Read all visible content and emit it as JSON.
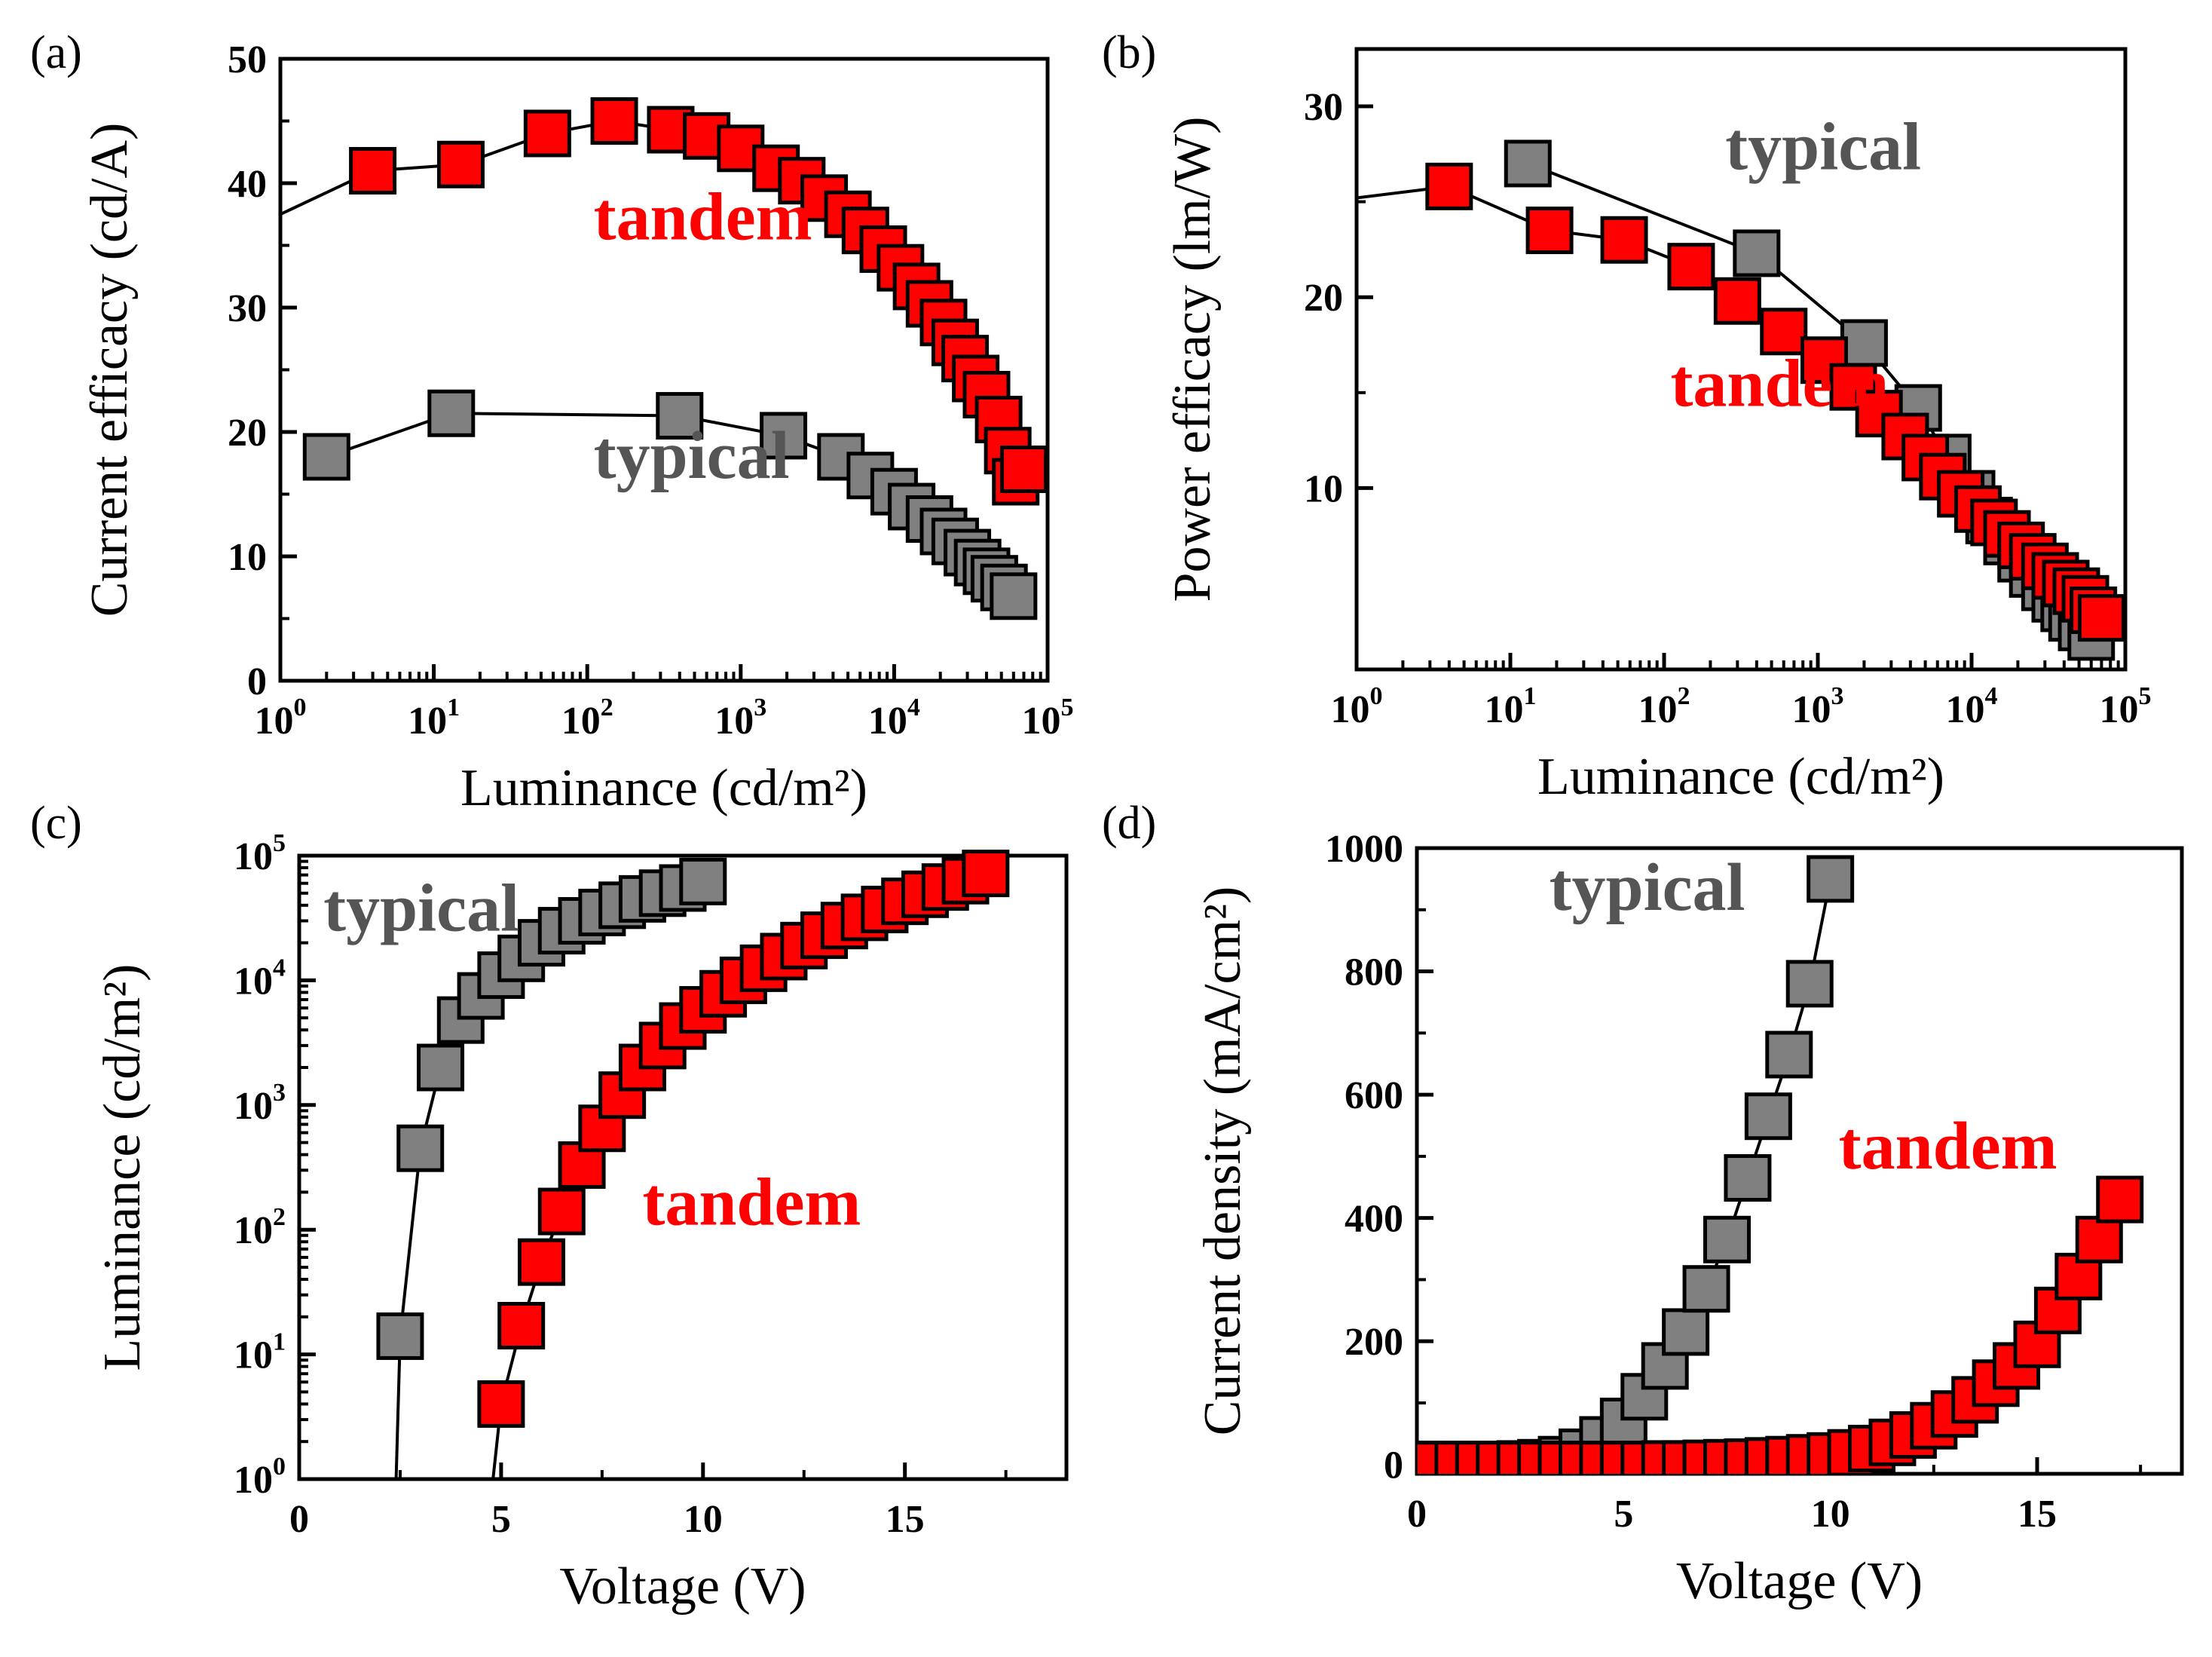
{
  "figure": {
    "colors": {
      "tandem": "#ff0000",
      "typical": "#808080",
      "axis": "#000000",
      "label_typical": "#555555"
    }
  },
  "chart_data": [
    {
      "panel": "(a)",
      "type": "scatter",
      "xscale": "log",
      "xlim": [
        1,
        100000
      ],
      "ylim": [
        0,
        50
      ],
      "xlabel": "Luminance (cd/m²)",
      "ylabel": "Current efficacy (cd/A)",
      "xticks": [
        1,
        10,
        100,
        1000,
        10000,
        100000
      ],
      "xtick_labels": [
        {
          "base": "10",
          "exp": "0"
        },
        {
          "base": "10",
          "exp": "1"
        },
        {
          "base": "10",
          "exp": "2"
        },
        {
          "base": "10",
          "exp": "3"
        },
        {
          "base": "10",
          "exp": "4"
        },
        {
          "base": "10",
          "exp": "5"
        }
      ],
      "yticks": [
        0,
        10,
        20,
        30,
        40,
        50
      ],
      "ytick_labels": [
        "0",
        "10",
        "20",
        "30",
        "40",
        "50"
      ],
      "annotations": [
        {
          "text": "tandem",
          "series": "tandem",
          "at": [
            110,
            35.5
          ]
        },
        {
          "text": "typical",
          "series": "typical",
          "at": [
            110,
            16.3
          ]
        }
      ],
      "series": [
        {
          "name": "tandem",
          "line_from": [
            1,
            37.5
          ],
          "x": [
            4,
            15,
            55,
            150,
            350,
            600,
            1000,
            1700,
            2500,
            3500,
            5000,
            6500,
            8500,
            11000,
            14000,
            17000,
            21000,
            25000,
            29000,
            34000,
            40000,
            48000,
            55000,
            62000,
            70000
          ],
          "y": [
            41,
            41.5,
            44,
            45,
            44.3,
            43.8,
            42.8,
            41.2,
            40.2,
            38.8,
            37.5,
            36.2,
            34.7,
            33.2,
            31.7,
            30.3,
            28.8,
            27.2,
            25.9,
            24.3,
            23,
            21,
            18.5,
            16,
            17
          ]
        },
        {
          "name": "typical",
          "x": [
            2,
            13,
            400,
            1900,
            4500,
            7000,
            10000,
            13000,
            17000,
            21000,
            25000,
            30000,
            35000,
            40000,
            45000,
            52000,
            60000
          ],
          "y": [
            18,
            21.5,
            21.3,
            19.7,
            18,
            16.5,
            15.2,
            14,
            13,
            12,
            11.2,
            10.3,
            9.5,
            8.8,
            8.2,
            7.5,
            6.8
          ]
        }
      ]
    },
    {
      "panel": "(b)",
      "type": "scatter",
      "xscale": "log",
      "xlim": [
        1,
        100000
      ],
      "ylim": [
        0.5,
        33
      ],
      "xlabel": "Luminance (cd/m²)",
      "ylabel": "Power efficacy (lm/W)",
      "xticks": [
        1,
        10,
        100,
        1000,
        10000,
        100000
      ],
      "xtick_labels": [
        {
          "base": "10",
          "exp": "0"
        },
        {
          "base": "10",
          "exp": "1"
        },
        {
          "base": "10",
          "exp": "2"
        },
        {
          "base": "10",
          "exp": "3"
        },
        {
          "base": "10",
          "exp": "4"
        },
        {
          "base": "10",
          "exp": "5"
        }
      ],
      "yticks": [
        10,
        20,
        30
      ],
      "ytick_labels": [
        "10",
        "20",
        "30"
      ],
      "annotations": [
        {
          "text": "typical",
          "series": "typical",
          "at": [
            250,
            26.7
          ]
        },
        {
          "text": "tandem",
          "series": "tandem",
          "at": [
            110,
            14.3
          ]
        }
      ],
      "series": [
        {
          "name": "typical",
          "x": [
            13,
            400,
            2000,
            4500,
            7000,
            10000,
            13000,
            17000,
            21000,
            25000,
            30000,
            35000,
            40000,
            45000,
            52000,
            60000
          ],
          "y": [
            27,
            22.3,
            17.6,
            14.2,
            11.6,
            9.7,
            8.3,
            7.2,
            6.3,
            5.5,
            4.8,
            4.2,
            3.7,
            3.2,
            2.7,
            2.2
          ]
        },
        {
          "name": "tandem",
          "line_from": [
            1,
            25.2
          ],
          "x": [
            4,
            18,
            55,
            150,
            300,
            600,
            1100,
            1700,
            2500,
            3700,
            5000,
            6500,
            8500,
            11000,
            14000,
            17000,
            21000,
            25000,
            30000,
            35000,
            41000,
            48000,
            55000,
            62000,
            70000
          ],
          "y": [
            25.8,
            23.5,
            23,
            21.6,
            19.8,
            18.2,
            16.7,
            15.3,
            13.9,
            12.7,
            11.6,
            10.6,
            9.7,
            8.9,
            8.2,
            7.6,
            7,
            6.4,
            5.9,
            5.4,
            5,
            4.6,
            4.2,
            3.6,
            3.2
          ]
        }
      ]
    },
    {
      "panel": "(c)",
      "type": "scatter",
      "yscale": "log",
      "xlim": [
        0,
        19
      ],
      "ylim": [
        1,
        100000
      ],
      "xlabel": "Voltage (V)",
      "ylabel": "Luminance (cd/m²)",
      "xticks": [
        0,
        5,
        10,
        15
      ],
      "xtick_labels": [
        "0",
        "5",
        "10",
        "15"
      ],
      "yticks": [
        1,
        10,
        100,
        1000,
        10000,
        100000
      ],
      "ytick_labels": [
        {
          "base": "10",
          "exp": "0"
        },
        {
          "base": "10",
          "exp": "1"
        },
        {
          "base": "10",
          "exp": "2"
        },
        {
          "base": "10",
          "exp": "3"
        },
        {
          "base": "10",
          "exp": "4"
        },
        {
          "base": "10",
          "exp": "5"
        }
      ],
      "annotations": [
        {
          "text": "typical",
          "series": "typical",
          "at": [
            0.6,
            25000
          ]
        },
        {
          "text": "tandem",
          "series": "tandem",
          "at": [
            8.5,
            110
          ]
        }
      ],
      "series": [
        {
          "name": "typical",
          "line_from": [
            2.4,
            1
          ],
          "x": [
            2.5,
            3.0,
            3.5,
            4.0,
            4.5,
            5.0,
            5.5,
            6.0,
            6.5,
            7.0,
            7.5,
            8.0,
            8.5,
            9.0,
            9.5,
            10.0
          ],
          "y": [
            14,
            450,
            2000,
            4800,
            7500,
            11000,
            15000,
            20000,
            25000,
            30000,
            35000,
            40000,
            45000,
            50000,
            55000,
            62000
          ]
        },
        {
          "name": "tandem",
          "line_from": [
            4.8,
            1
          ],
          "x": [
            5.0,
            5.5,
            6.0,
            6.5,
            7.0,
            7.5,
            8.0,
            8.5,
            9.0,
            9.5,
            10.0,
            10.5,
            11.0,
            11.5,
            12.0,
            12.5,
            13.0,
            13.5,
            14.0,
            14.5,
            15.0,
            15.5,
            16.0,
            16.5,
            17.0
          ],
          "y": [
            4,
            17,
            55,
            140,
            330,
            650,
            1200,
            2000,
            3000,
            4300,
            5800,
            7800,
            10000,
            12500,
            15500,
            19000,
            23000,
            27500,
            32000,
            37000,
            43000,
            49000,
            56000,
            63000,
            72000
          ]
        }
      ]
    },
    {
      "panel": "(d)",
      "type": "scatter",
      "xlim": [
        0,
        18.5
      ],
      "ylim": [
        -15,
        1000
      ],
      "xlabel": "Voltage (V)",
      "ylabel": "Current density (mA/cm²)",
      "xticks": [
        0,
        5,
        10,
        15
      ],
      "xtick_labels": [
        "0",
        "5",
        "10",
        "15"
      ],
      "yticks": [
        0,
        200,
        400,
        600,
        800,
        1000
      ],
      "ytick_labels": [
        "0",
        "200",
        "400",
        "600",
        "800",
        "1000"
      ],
      "annotations": [
        {
          "text": "typical",
          "series": "typical",
          "at": [
            3.2,
            900
          ]
        },
        {
          "text": "tandem",
          "series": "tandem",
          "at": [
            10.2,
            480
          ]
        }
      ],
      "series": [
        {
          "name": "typical",
          "x": [
            0,
            0.5,
            1.0,
            1.5,
            2.0,
            2.5,
            3.0,
            3.5,
            4.0,
            4.5,
            5.0,
            5.5,
            6.0,
            6.5,
            7.0,
            7.5,
            8.0,
            8.5,
            9.0,
            9.5,
            10.0
          ],
          "y": [
            0,
            0,
            0,
            0,
            0,
            1,
            3,
            8,
            20,
            40,
            70,
            110,
            160,
            215,
            285,
            365,
            465,
            565,
            665,
            780,
            950
          ]
        },
        {
          "name": "tandem",
          "x": [
            0,
            0.5,
            1.0,
            1.5,
            2.0,
            2.5,
            3.0,
            3.5,
            4.0,
            4.5,
            5.0,
            5.5,
            6.0,
            6.5,
            7.0,
            7.5,
            8.0,
            8.5,
            9.0,
            9.5,
            10.0,
            10.5,
            11.0,
            11.5,
            12.0,
            12.5,
            13.0,
            13.5,
            14.0,
            14.5,
            15.0,
            15.5,
            16.0,
            16.5,
            17.0
          ],
          "y": [
            0,
            0,
            0,
            0,
            0,
            0,
            0,
            0,
            0,
            0,
            0,
            0,
            1,
            1,
            2,
            3,
            4,
            6,
            8,
            11,
            14,
            19,
            26,
            36,
            48,
            63,
            82,
            105,
            132,
            160,
            195,
            250,
            305,
            365,
            430
          ]
        }
      ]
    }
  ]
}
